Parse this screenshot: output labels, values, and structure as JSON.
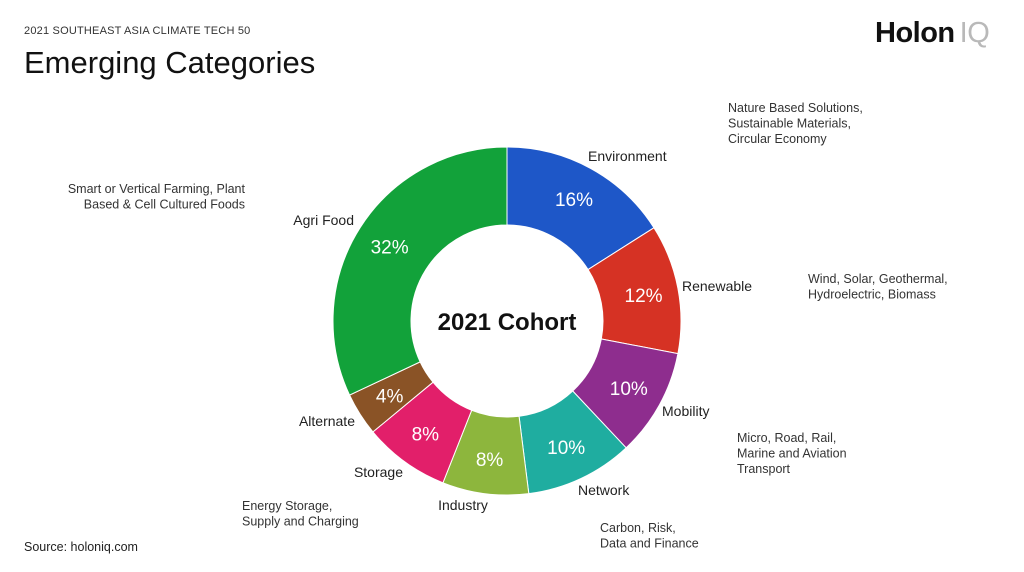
{
  "header": {
    "eyebrow": "2021 SOUTHEAST ASIA CLIMATE TECH 50",
    "title": "Emerging Categories"
  },
  "logo": {
    "word": "Holon",
    "mark": "IQ"
  },
  "footer": {
    "source": "Source: holoniq.com"
  },
  "chart_data": {
    "type": "pie",
    "variant": "donut",
    "center_label": "2021 Cohort",
    "unit": "%",
    "slices": [
      {
        "name": "Environment",
        "value": 16,
        "color": "#1e57c8",
        "description": [
          "Nature Based Solutions,",
          "Sustainable Materials,",
          "Circular Economy"
        ]
      },
      {
        "name": "Renewable",
        "value": 12,
        "color": "#d63224",
        "description": [
          "Wind, Solar, Geothermal,",
          "Hydroelectric, Biomass"
        ]
      },
      {
        "name": "Mobility",
        "value": 10,
        "color": "#8e2d8e",
        "description": [
          "Micro, Road, Rail,",
          "Marine and Aviation",
          "Transport"
        ]
      },
      {
        "name": "Network",
        "value": 10,
        "color": "#1fada0",
        "description": [
          "Carbon, Risk,",
          "Data and Finance"
        ]
      },
      {
        "name": "Industry",
        "value": 8,
        "color": "#8db63d",
        "description": []
      },
      {
        "name": "Storage",
        "value": 8,
        "color": "#e21f6a",
        "description": [
          "Energy Storage,",
          "Supply and Charging"
        ]
      },
      {
        "name": "Alternate",
        "value": 4,
        "color": "#8a5326",
        "description": []
      },
      {
        "name": "Agri Food",
        "value": 32,
        "color": "#12a23a",
        "description": [
          "Smart or Vertical Farming, Plant",
          "Based & Cell Cultured Foods"
        ]
      }
    ]
  }
}
